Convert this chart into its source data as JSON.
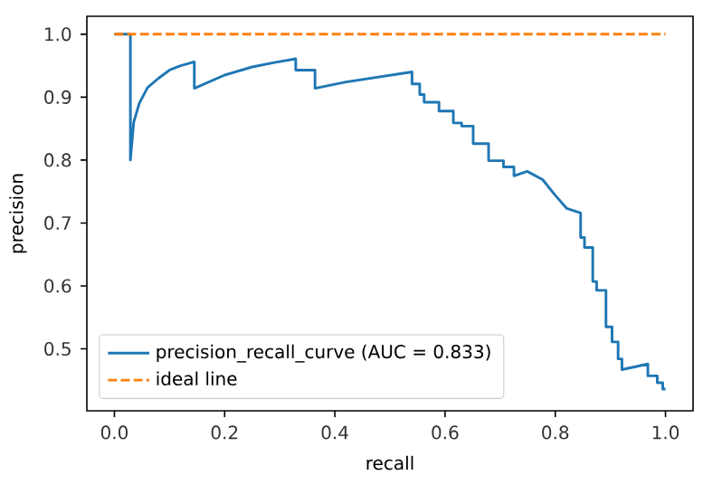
{
  "chart_data": {
    "type": "line",
    "xlabel": "recall",
    "ylabel": "precision",
    "xlim": [
      -0.05,
      1.05
    ],
    "ylim": [
      0.4015,
      1.0285
    ],
    "xticks": [
      {
        "value": 0,
        "label": "0.0"
      },
      {
        "value": 0.2,
        "label": "0.2"
      },
      {
        "value": 0.4,
        "label": "0.4"
      },
      {
        "value": 0.6,
        "label": "0.6"
      },
      {
        "value": 0.8,
        "label": "0.8"
      },
      {
        "value": 1,
        "label": "1.0"
      }
    ],
    "yticks": [
      {
        "value": 0.5,
        "label": "0.5"
      },
      {
        "value": 0.6,
        "label": "0.6"
      },
      {
        "value": 0.7,
        "label": "0.7"
      },
      {
        "value": 0.8,
        "label": "0.8"
      },
      {
        "value": 0.9,
        "label": "0.9"
      },
      {
        "value": 1,
        "label": "1.0"
      }
    ],
    "legend": "bottom left",
    "grid": false,
    "series": [
      {
        "name": "precision_recall_curve (AUC = 0.833)",
        "color": "#1f77b4",
        "line_style": "solid",
        "x": [
          0,
          0.029,
          0.029,
          0.035,
          0.045,
          0.06,
          0.08,
          0.1,
          0.12,
          0.145,
          0.145,
          0.2,
          0.25,
          0.29,
          0.329,
          0.329,
          0.364,
          0.364,
          0.42,
          0.48,
          0.54,
          0.54,
          0.554,
          0.554,
          0.562,
          0.562,
          0.589,
          0.589,
          0.615,
          0.615,
          0.63,
          0.63,
          0.651,
          0.651,
          0.679,
          0.679,
          0.706,
          0.706,
          0.725,
          0.725,
          0.749,
          0.777,
          0.799,
          0.821,
          0.846,
          0.846,
          0.853,
          0.853,
          0.868,
          0.868,
          0.875,
          0.875,
          0.892,
          0.892,
          0.903,
          0.903,
          0.914,
          0.914,
          0.921,
          0.921,
          0.968,
          0.968,
          0.985,
          0.985,
          0.995,
          0.995,
          1.0
        ],
        "values": [
          1.0,
          1.0,
          0.8,
          0.86,
          0.89,
          0.915,
          0.93,
          0.943,
          0.95,
          0.956,
          0.914,
          0.935,
          0.948,
          0.955,
          0.961,
          0.943,
          0.943,
          0.914,
          0.924,
          0.932,
          0.94,
          0.921,
          0.921,
          0.904,
          0.904,
          0.892,
          0.892,
          0.878,
          0.878,
          0.859,
          0.859,
          0.854,
          0.854,
          0.826,
          0.826,
          0.799,
          0.799,
          0.789,
          0.789,
          0.775,
          0.782,
          0.769,
          0.745,
          0.723,
          0.716,
          0.677,
          0.677,
          0.661,
          0.661,
          0.607,
          0.607,
          0.593,
          0.593,
          0.535,
          0.535,
          0.511,
          0.511,
          0.484,
          0.484,
          0.467,
          0.476,
          0.457,
          0.457,
          0.446,
          0.446,
          0.436,
          0.436
        ]
      },
      {
        "name": "ideal line",
        "color": "#ff7f0e",
        "line_style": "dashed",
        "x": [
          0,
          1
        ],
        "values": [
          1,
          1
        ]
      }
    ]
  }
}
